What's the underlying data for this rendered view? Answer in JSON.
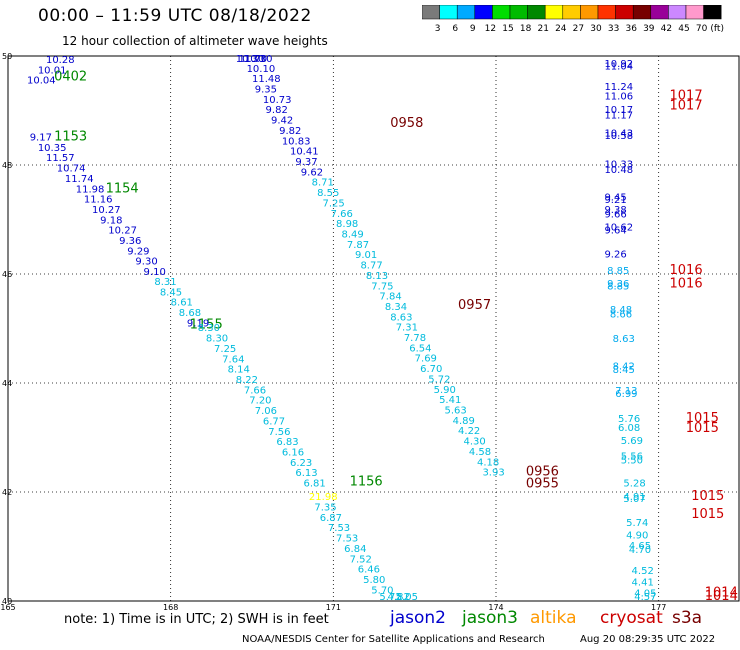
{
  "header": {
    "title": "00:00 – 11:59 UTC 08/18/2022",
    "subtitle": "12 hour collection of altimeter wave heights"
  },
  "legend": {
    "unit": "(ft)",
    "bins": [
      {
        "label": "3",
        "color": "#7a7a7a"
      },
      {
        "label": "6",
        "color": "#00ffff"
      },
      {
        "label": "9",
        "color": "#00aaff"
      },
      {
        "label": "12",
        "color": "#0000ff"
      },
      {
        "label": "15",
        "color": "#00dd00"
      },
      {
        "label": "18",
        "color": "#00bb00"
      },
      {
        "label": "21",
        "color": "#008800"
      },
      {
        "label": "24",
        "color": "#ffff00"
      },
      {
        "label": "27",
        "color": "#ffcc00"
      },
      {
        "label": "30",
        "color": "#ff9900"
      },
      {
        "label": "33",
        "color": "#ff3300"
      },
      {
        "label": "36",
        "color": "#cc0000"
      },
      {
        "label": "39",
        "color": "#770000"
      },
      {
        "label": "42",
        "color": "#990099"
      },
      {
        "label": "45",
        "color": "#cc88ff"
      },
      {
        "label": "70",
        "color": "#ff99cc"
      },
      {
        "label": "",
        "color": "#000000"
      }
    ]
  },
  "axes": {
    "lon_ticks": [
      "165",
      "168",
      "171",
      "174",
      "177"
    ],
    "lat_ticks": [
      "50",
      "48",
      "46",
      "44",
      "42",
      "40"
    ],
    "lon_range": [
      165,
      178.5
    ],
    "lat_range": [
      40,
      50
    ]
  },
  "tracks": [
    {
      "label": "0402",
      "label_color": "#008800",
      "label_lon": 165.85,
      "label_lat": 49.55,
      "point_color": "#0000cc",
      "points": [
        [
          "10.28",
          165.7,
          49.87
        ],
        [
          "10.01",
          165.55,
          49.68
        ],
        [
          "10.04",
          165.35,
          49.5
        ]
      ]
    },
    {
      "label": "1153",
      "label_color": "#008800",
      "label_lon": 165.85,
      "label_lat": 48.45,
      "point_color": "#0000cc",
      "points": [
        [
          "9.17",
          165.4,
          48.45
        ],
        [
          "10.35",
          165.55,
          48.26
        ],
        [
          "11.57",
          165.7,
          48.07
        ],
        [
          "10.74",
          165.9,
          47.88
        ]
      ]
    },
    {
      "label": "1154",
      "label_color": "#008800",
      "label_lon": 166.8,
      "label_lat": 47.5,
      "point_color": "#0000cc",
      "points": [
        [
          "11.74",
          166.05,
          47.69
        ],
        [
          "11.98",
          166.25,
          47.5
        ],
        [
          "11.16",
          166.4,
          47.31
        ],
        [
          "10.27",
          166.55,
          47.12
        ],
        [
          "9.18",
          166.7,
          46.93
        ],
        [
          "10.27",
          166.85,
          46.74
        ],
        [
          "9.36",
          167.05,
          46.55
        ],
        [
          "9.29",
          167.2,
          46.36
        ],
        [
          "9.30",
          167.35,
          46.17
        ],
        [
          "9.10",
          167.5,
          45.98
        ]
      ]
    },
    {
      "label": "1155",
      "label_color": "#008800",
      "label_lon": 168.35,
      "label_lat": 45.0,
      "point_color": "#00bbdd",
      "points": [
        [
          "8.31",
          167.7,
          45.8
        ],
        [
          "8.45",
          167.8,
          45.61
        ],
        [
          "8.61",
          168.0,
          45.42
        ],
        [
          "8.68",
          168.15,
          45.23
        ]
      ]
    },
    {
      "label": "",
      "label_color": "#0000cc",
      "label_lon": 0,
      "label_lat": 0,
      "point_color": "#0000cc",
      "points": [
        [
          "9.19",
          168.3,
          45.04
        ]
      ]
    },
    {
      "label": "",
      "label_color": "#00bbdd",
      "label_lon": 0,
      "label_lat": 0,
      "point_color": "#00bbdd",
      "points": [
        [
          "8.30",
          168.5,
          44.95
        ],
        [
          "8.30",
          168.65,
          44.76
        ],
        [
          "7.25",
          168.8,
          44.57
        ],
        [
          "7.64",
          168.95,
          44.38
        ],
        [
          "8.14",
          169.05,
          44.19
        ],
        [
          "8.22",
          169.2,
          44.0
        ],
        [
          "7.66",
          169.35,
          43.81
        ],
        [
          "7.20",
          169.45,
          43.62
        ],
        [
          "7.06",
          169.55,
          43.43
        ],
        [
          "6.77",
          169.7,
          43.24
        ],
        [
          "7.56",
          169.8,
          43.05
        ],
        [
          "6.83",
          169.95,
          42.86
        ],
        [
          "6.16",
          170.05,
          42.67
        ],
        [
          "6.23",
          170.2,
          42.48
        ],
        [
          "6.13",
          170.3,
          42.29
        ],
        [
          "6.81",
          170.45,
          42.1
        ]
      ]
    },
    {
      "label": "1156",
      "label_color": "#008800",
      "label_lon": 171.3,
      "label_lat": 42.12,
      "point_color": "#ffff00",
      "points": [
        [
          "21.98",
          170.55,
          41.85
        ]
      ]
    },
    {
      "label": "",
      "label_color": "#00bbdd",
      "label_lon": 0,
      "label_lat": 0,
      "point_color": "#00bbdd",
      "points": [
        [
          "7.35",
          170.65,
          41.66
        ],
        [
          "6.87",
          170.75,
          41.47
        ],
        [
          "7.53",
          170.9,
          41.28
        ],
        [
          "7.53",
          171.05,
          41.09
        ],
        [
          "6.84",
          171.2,
          40.9
        ],
        [
          "7.52",
          171.3,
          40.71
        ],
        [
          "6.46",
          171.45,
          40.52
        ],
        [
          "5.80",
          171.55,
          40.33
        ],
        [
          "5.70",
          171.7,
          40.14
        ],
        [
          "5.72",
          171.85,
          39.95
        ],
        [
          "4.82",
          172.0,
          39.76
        ],
        [
          "5.05",
          172.15,
          39.57
        ]
      ]
    },
    {
      "label": "0958",
      "label_color": "#770000",
      "label_lon": 172.05,
      "label_lat": 48.7,
      "point_color": "#0000cc",
      "points": [
        [
          "10.30",
          169.2,
          50.28
        ],
        [
          "11.70",
          169.25,
          50.09
        ],
        [
          "10.30",
          169.35,
          49.9
        ],
        [
          "10.10",
          169.4,
          49.71
        ],
        [
          "11.48",
          169.5,
          49.52
        ],
        [
          "9.35",
          169.55,
          49.33
        ],
        [
          "10.73",
          169.7,
          49.14
        ],
        [
          "9.82",
          169.75,
          48.95
        ],
        [
          "9.42",
          169.85,
          48.76
        ],
        [
          "9.82",
          170.0,
          48.57
        ],
        [
          "10.83",
          170.05,
          48.38
        ],
        [
          "10.41",
          170.2,
          48.19
        ],
        [
          "9.37",
          170.3,
          48.0
        ],
        [
          "9.62",
          170.4,
          47.81
        ]
      ]
    },
    {
      "label": "0957",
      "label_color": "#770000",
      "label_lon": 173.3,
      "label_lat": 45.36,
      "point_color": "#00bbdd",
      "points": [
        [
          "8.71",
          170.6,
          47.62
        ],
        [
          "8.55",
          170.7,
          47.43
        ],
        [
          "7.25",
          170.8,
          47.24
        ],
        [
          "7.66",
          170.95,
          47.05
        ],
        [
          "8.98",
          171.05,
          46.86
        ],
        [
          "8.49",
          171.15,
          46.67
        ],
        [
          "7.87",
          171.25,
          46.48
        ],
        [
          "9.01",
          171.4,
          46.29
        ],
        [
          "8.77",
          171.5,
          46.1
        ],
        [
          "8.13",
          171.6,
          45.91
        ],
        [
          "7.75",
          171.7,
          45.72
        ],
        [
          "7.84",
          171.85,
          45.53
        ],
        [
          "8.34",
          171.95,
          45.34
        ],
        [
          "8.63",
          172.05,
          45.15
        ],
        [
          "7.31",
          172.15,
          44.96
        ],
        [
          "7.78",
          172.3,
          44.77
        ],
        [
          "6.54",
          172.4,
          44.58
        ],
        [
          "7.69",
          172.5,
          44.39
        ],
        [
          "6.70",
          172.6,
          44.2
        ],
        [
          "5.72",
          172.75,
          44.01
        ],
        [
          "5.90",
          172.85,
          43.82
        ],
        [
          "5.41",
          172.95,
          43.63
        ],
        [
          "5.63",
          173.05,
          43.44
        ],
        [
          "4.89",
          173.2,
          43.25
        ],
        [
          "4.22",
          173.3,
          43.06
        ],
        [
          "4.30",
          173.4,
          42.87
        ],
        [
          "4.58",
          173.5,
          42.68
        ],
        [
          "4.18",
          173.65,
          42.49
        ],
        [
          "3.93",
          173.75,
          42.3
        ]
      ]
    },
    {
      "label": "0956",
      "label_color": "#770000",
      "label_lon": 174.55,
      "label_lat": 42.3,
      "point_color": "#000000",
      "points": []
    },
    {
      "label": "0955",
      "label_color": "#770000",
      "label_lon": 174.55,
      "label_lat": 42.08,
      "point_color": "#000000",
      "points": []
    },
    {
      "label": "1017",
      "label_color": "#cc0000",
      "label_lon": 177.2,
      "label_lat": 49.2,
      "point_color": "#0000cc",
      "points": [
        [
          "10.92",
          176.0,
          49.8
        ],
        [
          "11.04",
          176.0,
          49.75
        ],
        [
          "11.24",
          176.0,
          49.38
        ],
        [
          "11.06",
          176.0,
          49.2
        ],
        [
          "10.17",
          176.0,
          48.95
        ],
        [
          "11.17",
          176.0,
          48.85
        ],
        [
          "10.43",
          176.0,
          48.52
        ],
        [
          "10.58",
          176.0,
          48.48
        ]
      ]
    },
    {
      "label": "1017",
      "label_color": "#cc0000",
      "label_lon": 177.2,
      "label_lat": 49.02,
      "point_color": "#0000cc",
      "points": [
        [
          "10.33",
          176.0,
          47.95
        ],
        [
          "10.48",
          176.0,
          47.85
        ],
        [
          "9.45",
          176.0,
          47.35
        ],
        [
          "9.21",
          176.0,
          47.3
        ],
        [
          "9.38",
          176.0,
          47.12
        ],
        [
          "9.66",
          176.0,
          47.04
        ],
        [
          "10.62",
          176.0,
          46.8
        ],
        [
          "9.64",
          176.0,
          46.74
        ],
        [
          "9.26",
          176.0,
          46.3
        ]
      ]
    },
    {
      "label": "1016",
      "label_color": "#cc0000",
      "label_lon": 177.2,
      "label_lat": 46.0,
      "point_color": "#00aaee",
      "points": [
        [
          "8.85",
          176.05,
          46.0
        ],
        [
          "9.36",
          176.05,
          45.76
        ],
        [
          "8.85",
          176.05,
          45.72
        ],
        [
          "8.48",
          176.1,
          45.28
        ],
        [
          "8.66",
          176.1,
          45.2
        ],
        [
          "8.63",
          176.15,
          44.75
        ],
        [
          "8.42",
          176.15,
          44.25
        ],
        [
          "8.45",
          176.15,
          44.18
        ],
        [
          "7.13",
          176.2,
          43.8
        ],
        [
          "6.99",
          176.2,
          43.74
        ]
      ]
    },
    {
      "label": "1016",
      "label_color": "#cc0000",
      "label_lon": 177.2,
      "label_lat": 45.75,
      "point_color": "#00bbdd",
      "points": [
        [
          "5.76",
          176.25,
          43.28
        ],
        [
          "6.08",
          176.25,
          43.12
        ],
        [
          "5.69",
          176.3,
          42.88
        ],
        [
          "5.56",
          176.3,
          42.6
        ],
        [
          "5.50",
          176.3,
          42.52
        ],
        [
          "5.28",
          176.35,
          42.1
        ],
        [
          "4.91",
          176.35,
          41.85
        ],
        [
          "5.07",
          176.35,
          41.82
        ]
      ]
    },
    {
      "label": "1015",
      "label_color": "#cc0000",
      "label_lon": 177.5,
      "label_lat": 43.28,
      "point_color": "#00bbdd",
      "points": [
        [
          "5.74",
          176.4,
          41.38
        ],
        [
          "4.90",
          176.4,
          41.15
        ],
        [
          "4.65",
          176.45,
          40.95
        ],
        [
          "4.70",
          176.45,
          40.88
        ]
      ]
    },
    {
      "label": "1015",
      "label_color": "#cc0000",
      "label_lon": 177.5,
      "label_lat": 43.1,
      "point_color": "#00bbdd",
      "points": [
        [
          "4.52",
          176.5,
          40.5
        ],
        [
          "4.41",
          176.5,
          40.28
        ],
        [
          "4.05",
          176.55,
          40.08
        ],
        [
          "4.57",
          176.55,
          39.85
        ]
      ]
    },
    {
      "label": "1015",
      "label_color": "#cc0000",
      "label_lon": 177.6,
      "label_lat": 41.85,
      "point_color": "#000000",
      "points": []
    },
    {
      "label": "1015",
      "label_color": "#cc0000",
      "label_lon": 177.6,
      "label_lat": 41.52,
      "point_color": "#000000",
      "points": []
    },
    {
      "label": "1014",
      "label_color": "#cc0000",
      "label_lon": 177.85,
      "label_lat": 40.08,
      "point_color": "#000000",
      "points": []
    },
    {
      "label": "1014",
      "label_color": "#cc0000",
      "label_lon": 177.85,
      "label_lat": 39.85,
      "point_color": "#000000",
      "points": []
    }
  ],
  "footer": {
    "note": "note:  1) Time is in UTC;  2) SWH is in feet",
    "satellites": [
      {
        "name": "jason2",
        "color": "#0000cc"
      },
      {
        "name": "jason3",
        "color": "#008800"
      },
      {
        "name": "altika",
        "color": "#ff9900"
      },
      {
        "name": "cryosat",
        "color": "#cc0000"
      },
      {
        "name": "s3a",
        "color": "#770000"
      }
    ],
    "credit": "NOAA/NESDIS Center for Satellite Applications and Research",
    "timestamp": "Aug 20 08:29:35 UTC 2022"
  }
}
